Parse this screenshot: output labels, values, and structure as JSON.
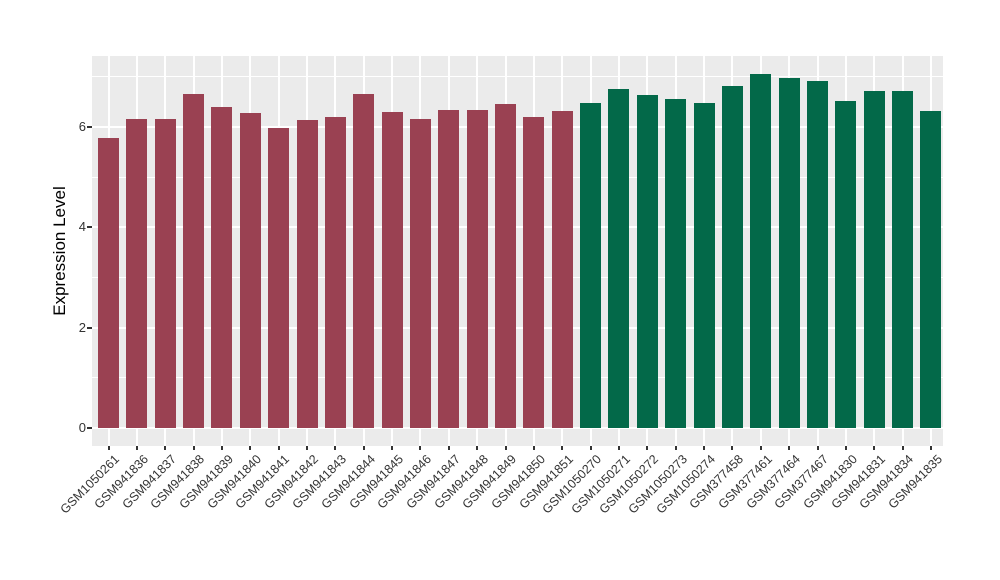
{
  "figure": {
    "ylabel": "Expression Level"
  },
  "chart_data": {
    "type": "bar",
    "title": "",
    "xlabel": "",
    "ylabel": "Expression Level",
    "ylim": [
      0,
      7.4
    ],
    "yticks": [
      0,
      2,
      4,
      6
    ],
    "legend_position": "none",
    "grid": "white major+minor horizontal gridlines and vertical category gridlines on gray panel",
    "panel_background": "#EBEBEB",
    "gridline_color": "#FFFFFF",
    "tick_label_color": "#333333",
    "categories": [
      "GSM1050261",
      "GSM941836",
      "GSM941837",
      "GSM941838",
      "GSM941839",
      "GSM941840",
      "GSM941841",
      "GSM941842",
      "GSM941843",
      "GSM941844",
      "GSM941845",
      "GSM941846",
      "GSM941847",
      "GSM941848",
      "GSM941849",
      "GSM941850",
      "GSM941851",
      "GSM1050270",
      "GSM1050271",
      "GSM1050272",
      "GSM1050273",
      "GSM1050274",
      "GSM377458",
      "GSM377461",
      "GSM377464",
      "GSM377467",
      "GSM941830",
      "GSM941831",
      "GSM941834",
      "GSM941835"
    ],
    "values": [
      5.78,
      6.15,
      6.15,
      6.65,
      6.39,
      6.27,
      5.97,
      6.14,
      6.19,
      6.65,
      6.3,
      6.15,
      6.34,
      6.34,
      6.46,
      6.19,
      6.32,
      6.48,
      6.76,
      6.64,
      6.55,
      6.48,
      6.82,
      7.06,
      6.97,
      6.92,
      6.52,
      6.72,
      6.72,
      6.32
    ],
    "bar_groups": [
      "maroon",
      "maroon",
      "maroon",
      "maroon",
      "maroon",
      "maroon",
      "maroon",
      "maroon",
      "maroon",
      "maroon",
      "maroon",
      "maroon",
      "maroon",
      "maroon",
      "maroon",
      "maroon",
      "maroon",
      "green",
      "green",
      "green",
      "green",
      "green",
      "green",
      "green",
      "green",
      "green",
      "green",
      "green",
      "green",
      "green"
    ],
    "group_colors": {
      "maroon": "#9A4152",
      "green": "#036949"
    }
  }
}
